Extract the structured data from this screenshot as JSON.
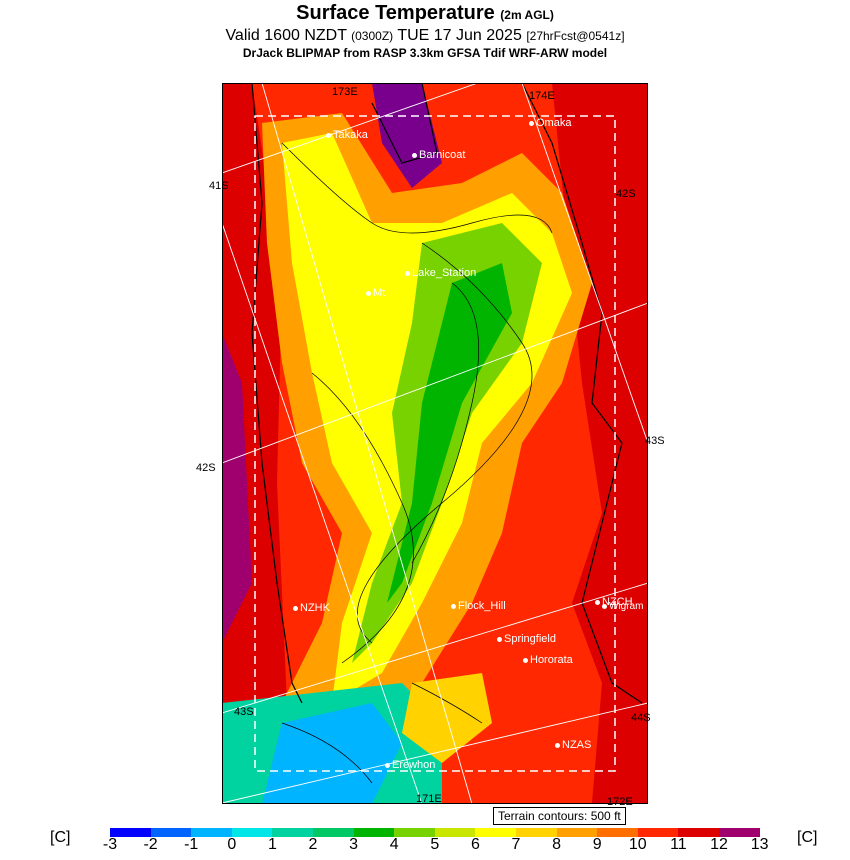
{
  "header": {
    "title": "Surface Temperature",
    "title_sub": "(2m AGL)",
    "valid": "Valid 1600 NZDT",
    "zulu": "(0300Z)",
    "date": "TUE 17 Jun 2025",
    "fcst": "[27hrFcst@0541z]",
    "model": "DrJack BLIPMAP from RASP 3.3km GFSA Tdif WRF-ARW model"
  },
  "map": {
    "lat_labels": [
      "41S",
      "42S",
      "43S",
      "42S",
      "43S",
      "44S"
    ],
    "lon_labels": [
      "173E",
      "174E",
      "171E",
      "172E"
    ],
    "locations": [
      {
        "name": "Takaka"
      },
      {
        "name": "Barnicoat"
      },
      {
        "name": "Omaka"
      },
      {
        "name": "Lake_Station"
      },
      {
        "name": "Mt"
      },
      {
        "name": "NZHK"
      },
      {
        "name": "Flock_Hill"
      },
      {
        "name": "NZCH"
      },
      {
        "name": "Wigram"
      },
      {
        "name": "Springfield"
      },
      {
        "name": "Hororata"
      },
      {
        "name": "NZAS"
      },
      {
        "name": "Erewhon"
      }
    ],
    "terrain_note": "Terrain contours: 500 ft"
  },
  "colorbar": {
    "unit": "[C]",
    "ticks": [
      "-3",
      "-2",
      "-1",
      "0",
      "1",
      "2",
      "3",
      "4",
      "5",
      "6",
      "7",
      "8",
      "9",
      "10",
      "11",
      "12",
      "13"
    ],
    "colors": [
      "#0000ff",
      "#0064ff",
      "#00b4ff",
      "#00e6e6",
      "#00d2a0",
      "#00c864",
      "#00b400",
      "#78d200",
      "#c8e600",
      "#ffff00",
      "#ffd200",
      "#ffa000",
      "#ff6e00",
      "#ff2800",
      "#dc0000",
      "#a0006e",
      "#78008c"
    ]
  }
}
